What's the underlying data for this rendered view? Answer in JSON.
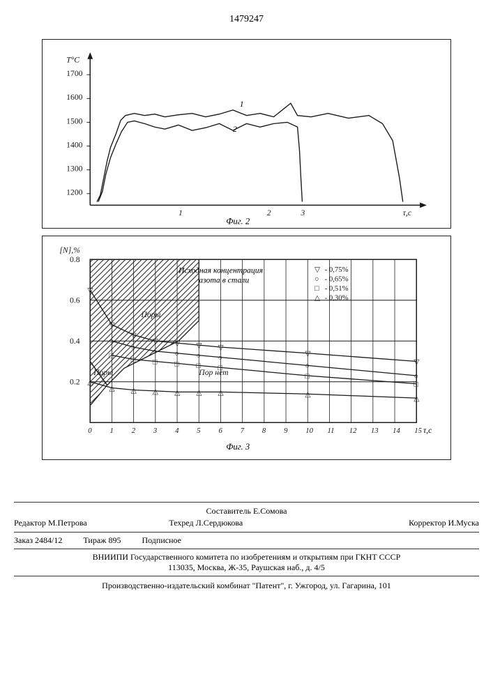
{
  "page_number": "1479247",
  "chart1": {
    "type": "line",
    "ylabel": "T°C",
    "xlabel": "τ,с",
    "caption": "Фиг. 2",
    "yticks": [
      1200,
      1300,
      1400,
      1500,
      1600,
      1700
    ],
    "xticks": [
      1,
      2,
      3
    ],
    "series_labels": [
      "1",
      "2"
    ],
    "stroke_color": "#1a1a1a",
    "grid_color": "#1a1a1a",
    "linewidth": 1.2
  },
  "chart2": {
    "type": "scatter-line",
    "ylabel": "[N],%",
    "xlabel": "τ,с",
    "caption": "Фиг. 3",
    "yticks": [
      0.2,
      0.4,
      0.6,
      0.8
    ],
    "xticks": [
      0,
      1,
      2,
      3,
      4,
      5,
      6,
      7,
      8,
      9,
      10,
      11,
      12,
      13,
      14,
      15
    ],
    "legend_title": "Исходная концентрация азота в стали",
    "legend": [
      {
        "marker": "▽",
        "label": "- 0,75%"
      },
      {
        "marker": "○",
        "label": "- 0,65%"
      },
      {
        "marker": "□",
        "label": "- 0,51%"
      },
      {
        "marker": "△",
        "label": "- 0,30%"
      }
    ],
    "hatch_label_1": "Поры",
    "hatch_label_2": "Поры",
    "clear_label": "Пор нет",
    "series": [
      {
        "marker": "▽",
        "points": [
          [
            0,
            0.75
          ],
          [
            1,
            0.58
          ],
          [
            2,
            0.53
          ],
          [
            3,
            0.5
          ],
          [
            4,
            0.49
          ],
          [
            5,
            0.48
          ],
          [
            6,
            0.47
          ],
          [
            10,
            0.44
          ],
          [
            15,
            0.4
          ]
        ]
      },
      {
        "marker": "○",
        "points": [
          [
            1,
            0.5
          ],
          [
            2,
            0.47
          ],
          [
            3,
            0.45
          ],
          [
            4,
            0.44
          ],
          [
            5,
            0.43
          ],
          [
            6,
            0.42
          ],
          [
            10,
            0.38
          ],
          [
            15,
            0.33
          ]
        ]
      },
      {
        "marker": "□",
        "points": [
          [
            1,
            0.43
          ],
          [
            2,
            0.41
          ],
          [
            3,
            0.4
          ],
          [
            4,
            0.39
          ],
          [
            5,
            0.38
          ],
          [
            6,
            0.37
          ],
          [
            10,
            0.33
          ],
          [
            15,
            0.29
          ]
        ]
      },
      {
        "marker": "△",
        "points": [
          [
            0,
            0.3
          ],
          [
            1,
            0.27
          ],
          [
            2,
            0.26
          ],
          [
            3,
            0.255
          ],
          [
            4,
            0.25
          ],
          [
            5,
            0.25
          ],
          [
            6,
            0.25
          ],
          [
            10,
            0.24
          ],
          [
            15,
            0.22
          ]
        ]
      }
    ],
    "stroke_color": "#1a1a1a",
    "grid_color": "#1a1a1a",
    "hatch_color": "#1a1a1a"
  },
  "credits": {
    "compiler_label": "Составитель",
    "compiler": "Е.Сомова",
    "editor_label": "Редактор",
    "editor": "М.Петрова",
    "techred_label": "Техред",
    "techred": "Л.Сердюкова",
    "corrector_label": "Корректор",
    "corrector": "И.Муска"
  },
  "order": {
    "order_no": "Заказ 2484/12",
    "tirazh": "Тираж 895",
    "subscription": "Подписное"
  },
  "institution_line1": "ВНИИПИ Государственного комитета по изобретениям и открытиям при ГКНТ СССР",
  "institution_line2": "113035, Москва, Ж-35, Раушская наб., д. 4/5",
  "publisher": "Производственно-издательский комбинат \"Патент\", г. Ужгород, ул. Гагарина, 101"
}
